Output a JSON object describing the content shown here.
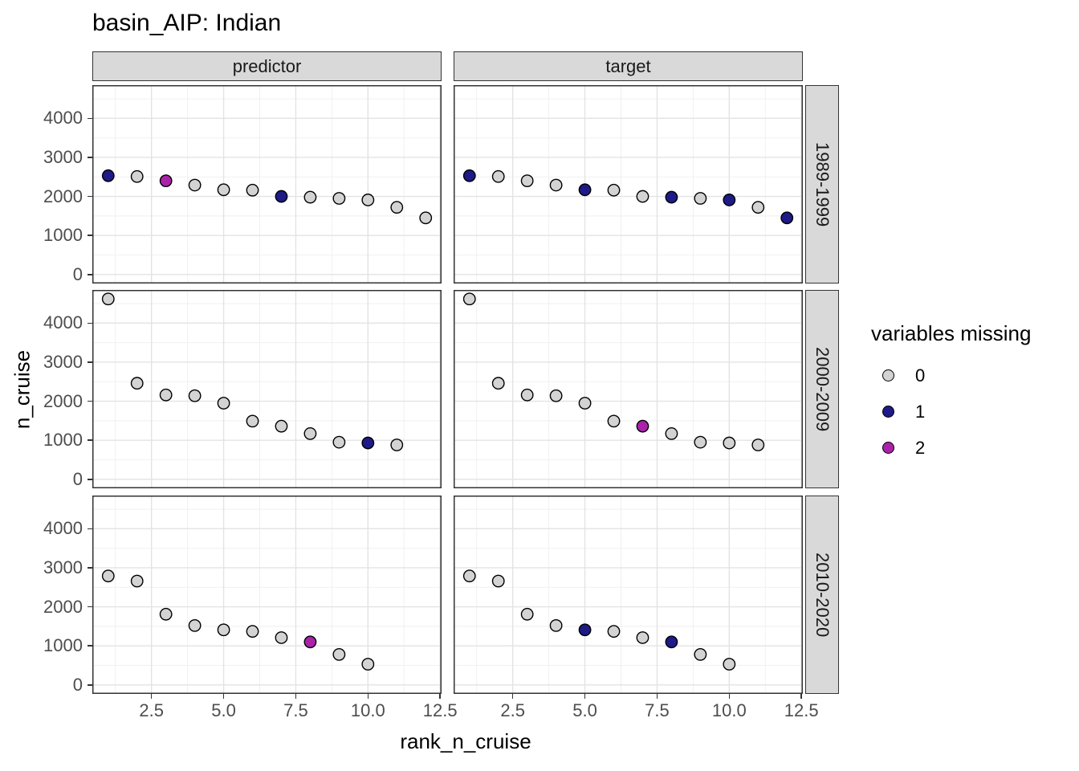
{
  "chart_data": {
    "type": "scatter",
    "title": "basin_AIP: Indian",
    "xlabel": "rank_n_cruise",
    "ylabel": "n_cruise",
    "col_facets": [
      "predictor",
      "target"
    ],
    "row_facets": [
      "1989-1999",
      "2000-2009",
      "2010-2020"
    ],
    "x_tick_labels": [
      "2.5",
      "5.0",
      "7.5",
      "10.0",
      "12.5"
    ],
    "x_tick_values": [
      2.5,
      5.0,
      7.5,
      10.0,
      12.5
    ],
    "x_minor_values": [
      1.25,
      3.75,
      6.25,
      8.75,
      11.25
    ],
    "y_tick_labels": [
      "0",
      "1000",
      "2000",
      "3000",
      "4000"
    ],
    "y_tick_values": [
      0,
      1000,
      2000,
      3000,
      4000
    ],
    "y_minor_values": [
      500,
      1500,
      2500,
      3500,
      4500
    ],
    "x_domain": [
      0.45,
      12.55
    ],
    "y_domain": [
      -231,
      4851
    ],
    "grid": true,
    "legend": {
      "title": "variables missing",
      "position": "right",
      "entries": [
        {
          "label": "0",
          "color": "#D3D3D3"
        },
        {
          "label": "1",
          "color": "#1E1A87"
        },
        {
          "label": "2",
          "color": "#AA22AA"
        }
      ]
    },
    "point_style": {
      "stroke": "#000000",
      "radius": 7.2,
      "stroke_width": 1.4
    },
    "panels": [
      {
        "row_facet": "1989-1999",
        "col_facet": "predictor",
        "points": [
          [
            1,
            2530,
            1
          ],
          [
            2,
            2510,
            0
          ],
          [
            3,
            2400,
            2
          ],
          [
            4,
            2290,
            0
          ],
          [
            5,
            2170,
            0
          ],
          [
            6,
            2160,
            0
          ],
          [
            7,
            2000,
            1
          ],
          [
            8,
            1980,
            0
          ],
          [
            9,
            1950,
            0
          ],
          [
            10,
            1910,
            0
          ],
          [
            11,
            1720,
            0
          ],
          [
            12,
            1450,
            0
          ]
        ]
      },
      {
        "row_facet": "1989-1999",
        "col_facet": "target",
        "points": [
          [
            1,
            2530,
            1
          ],
          [
            2,
            2510,
            0
          ],
          [
            3,
            2400,
            0
          ],
          [
            4,
            2290,
            0
          ],
          [
            5,
            2170,
            1
          ],
          [
            6,
            2160,
            0
          ],
          [
            7,
            2000,
            0
          ],
          [
            8,
            1980,
            1
          ],
          [
            9,
            1950,
            0
          ],
          [
            10,
            1910,
            1
          ],
          [
            11,
            1720,
            0
          ],
          [
            12,
            1450,
            1
          ]
        ]
      },
      {
        "row_facet": "2000-2009",
        "col_facet": "predictor",
        "points": [
          [
            1,
            4620,
            0
          ],
          [
            2,
            2460,
            0
          ],
          [
            3,
            2160,
            0
          ],
          [
            4,
            2140,
            0
          ],
          [
            5,
            1950,
            0
          ],
          [
            6,
            1490,
            0
          ],
          [
            7,
            1360,
            0
          ],
          [
            8,
            1170,
            0
          ],
          [
            9,
            950,
            0
          ],
          [
            10,
            930,
            1
          ],
          [
            11,
            880,
            0
          ]
        ]
      },
      {
        "row_facet": "2000-2009",
        "col_facet": "target",
        "points": [
          [
            1,
            4620,
            0
          ],
          [
            2,
            2460,
            0
          ],
          [
            3,
            2160,
            0
          ],
          [
            4,
            2140,
            0
          ],
          [
            5,
            1950,
            0
          ],
          [
            6,
            1490,
            0
          ],
          [
            7,
            1360,
            2
          ],
          [
            8,
            1170,
            0
          ],
          [
            9,
            950,
            0
          ],
          [
            10,
            930,
            0
          ],
          [
            11,
            880,
            0
          ]
        ]
      },
      {
        "row_facet": "2010-2020",
        "col_facet": "predictor",
        "points": [
          [
            1,
            2790,
            0
          ],
          [
            2,
            2660,
            0
          ],
          [
            3,
            1810,
            0
          ],
          [
            4,
            1520,
            0
          ],
          [
            5,
            1410,
            0
          ],
          [
            6,
            1370,
            0
          ],
          [
            7,
            1210,
            0
          ],
          [
            8,
            1100,
            2
          ],
          [
            9,
            780,
            0
          ],
          [
            10,
            530,
            0
          ]
        ]
      },
      {
        "row_facet": "2010-2020",
        "col_facet": "target",
        "points": [
          [
            1,
            2790,
            0
          ],
          [
            2,
            2660,
            0
          ],
          [
            3,
            1810,
            0
          ],
          [
            4,
            1520,
            0
          ],
          [
            5,
            1410,
            1
          ],
          [
            6,
            1370,
            0
          ],
          [
            7,
            1210,
            0
          ],
          [
            8,
            1100,
            1
          ],
          [
            9,
            780,
            0
          ],
          [
            10,
            530,
            0
          ]
        ]
      }
    ]
  }
}
